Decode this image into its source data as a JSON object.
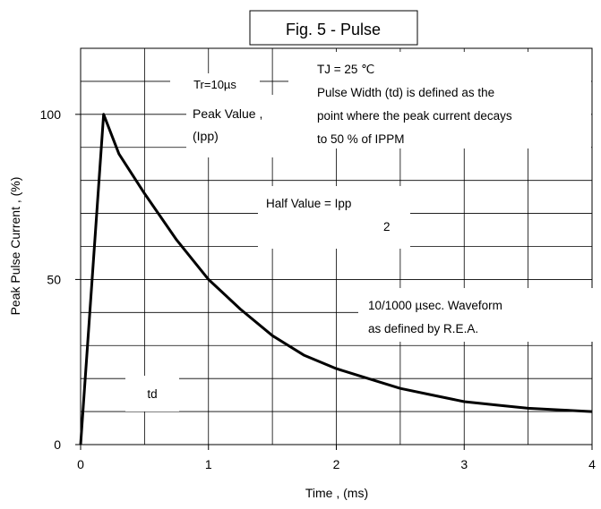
{
  "chart_data": {
    "type": "line",
    "title": "Fig. 5 - Pulse",
    "xlabel": "Time , (ms)",
    "ylabel": "Peak Pulse Current , (%)",
    "xlim": [
      0,
      4
    ],
    "ylim": [
      0,
      120
    ],
    "x_ticks": [
      "0",
      "1",
      "2",
      "3",
      "4"
    ],
    "y_ticks": [
      "0",
      "50",
      "100"
    ],
    "grid": true,
    "series": [
      {
        "x": [
          0,
          0.18,
          0.3,
          0.5,
          0.75,
          1.0,
          1.25,
          1.5,
          1.75,
          2.0,
          2.25,
          2.5,
          2.75,
          3.0,
          3.25,
          3.5,
          3.75,
          4.0
        ],
        "values": [
          0,
          100,
          88,
          76,
          62,
          50,
          41,
          33,
          27,
          23,
          20,
          17,
          15,
          13,
          12,
          11,
          10.5,
          10
        ],
        "color": "#000000"
      }
    ],
    "annotations": {
      "tr": "Tr=10µs",
      "peak_line1": "Peak Value ,",
      "peak_line2": "(Ipp)",
      "cond_line1": "TJ = 25 ℃",
      "cond_line2": "Pulse Width (td) is defined as the",
      "cond_line3": "point where the peak current decays",
      "cond_line4": "to 50 % of IPPM",
      "half_line1": "Half Value = Ipp",
      "half_line2": "2",
      "wave_line1": "10/1000 µsec. Waveform",
      "wave_line2": "as defined by R.E.A.",
      "td": "td"
    }
  }
}
